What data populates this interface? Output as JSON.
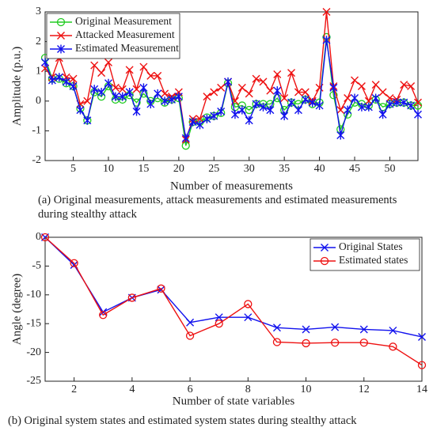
{
  "chart_data": [
    {
      "type": "line",
      "x_label": "Number of measurements",
      "y_label": "Amplitude (p.u.)",
      "caption": "(a) Original measurements, attack measurements and estimated measurements during stealthy attack",
      "x": [
        1,
        2,
        3,
        4,
        5,
        6,
        7,
        8,
        9,
        10,
        11,
        12,
        13,
        14,
        15,
        16,
        17,
        18,
        19,
        20,
        21,
        22,
        23,
        24,
        25,
        26,
        27,
        28,
        29,
        30,
        31,
        32,
        33,
        34,
        35,
        36,
        37,
        38,
        39,
        40,
        41,
        42,
        43,
        44,
        45,
        46,
        47,
        48,
        49,
        50,
        51,
        52,
        53,
        54
      ],
      "xlim": [
        1,
        54
      ],
      "xticks": [
        5,
        10,
        15,
        20,
        25,
        30,
        35,
        40,
        45,
        50
      ],
      "ylim": [
        -2,
        3
      ],
      "yticks": [
        -2,
        -1,
        0,
        1,
        2,
        3
      ],
      "legend": "top-left",
      "series": [
        {
          "name": "Original Measurement",
          "color": "#22cc22",
          "marker": "circle",
          "values": [
            1.45,
            0.75,
            0.75,
            0.6,
            0.5,
            -0.25,
            -0.65,
            0.3,
            0.15,
            0.5,
            0.05,
            0.05,
            0.2,
            -0.05,
            0.25,
            0.0,
            0.1,
            -0.05,
            0.05,
            0.1,
            -1.5,
            -0.7,
            -0.7,
            -0.55,
            -0.5,
            -0.4,
            0.6,
            -0.2,
            -0.15,
            -0.3,
            -0.1,
            -0.1,
            -0.1,
            0.1,
            -0.3,
            -0.05,
            -0.1,
            0.05,
            -0.1,
            -0.05,
            2.15,
            0.2,
            -0.95,
            -0.45,
            -0.05,
            -0.1,
            -0.15,
            0.05,
            -0.2,
            -0.1,
            -0.05,
            -0.05,
            -0.15,
            -0.15
          ]
        },
        {
          "name": "Attacked Measurement",
          "color": "#ee1111",
          "marker": "x",
          "values": [
            1.1,
            0.8,
            1.45,
            0.8,
            0.75,
            -0.1,
            0.0,
            1.2,
            0.95,
            1.3,
            0.45,
            0.4,
            1.05,
            0.4,
            1.15,
            0.85,
            0.85,
            0.25,
            0.15,
            0.3,
            -1.3,
            -0.6,
            -0.6,
            0.15,
            0.3,
            0.45,
            0.65,
            0.0,
            0.45,
            0.25,
            0.75,
            0.65,
            0.35,
            0.9,
            0.1,
            0.95,
            0.3,
            0.3,
            0.0,
            0.45,
            3.0,
            0.5,
            -0.3,
            0.1,
            0.7,
            0.5,
            0.0,
            0.55,
            0.3,
            0.1,
            0.05,
            0.55,
            0.5,
            -0.05
          ]
        },
        {
          "name": "Estimated Measurement",
          "color": "#1111ee",
          "marker": "asterisk",
          "values": [
            1.3,
            0.7,
            0.8,
            0.65,
            0.5,
            -0.3,
            -0.65,
            0.4,
            0.3,
            0.6,
            0.15,
            0.15,
            0.3,
            -0.35,
            0.45,
            -0.1,
            0.25,
            0.0,
            0.05,
            0.15,
            -1.25,
            -0.7,
            -0.8,
            -0.6,
            -0.5,
            -0.35,
            0.65,
            -0.45,
            -0.3,
            -0.65,
            -0.1,
            -0.2,
            -0.3,
            0.35,
            -0.5,
            -0.05,
            -0.3,
            0.05,
            -0.05,
            -0.15,
            2.05,
            0.45,
            -1.15,
            -0.3,
            0.1,
            -0.2,
            -0.2,
            0.1,
            -0.45,
            -0.1,
            -0.05,
            -0.05,
            -0.15,
            -0.45
          ]
        }
      ]
    },
    {
      "type": "line",
      "x_label": "Number of state variables",
      "y_label": "Angle (degree)",
      "caption": "(b) Original system states and estimated system states during stealthy attack",
      "x": [
        1,
        2,
        3,
        4,
        5,
        6,
        7,
        8,
        9,
        10,
        11,
        12,
        13,
        14
      ],
      "xlim": [
        1,
        14
      ],
      "xticks": [
        2,
        4,
        6,
        8,
        10,
        12,
        14
      ],
      "ylim": [
        -25,
        0
      ],
      "yticks": [
        -25,
        -20,
        -15,
        -10,
        -5,
        0
      ],
      "legend": "top-right",
      "series": [
        {
          "name": "Original States",
          "color": "#1111ee",
          "marker": "x",
          "values": [
            0,
            -4.8,
            -13,
            -10.5,
            -9.1,
            -14.8,
            -13.9,
            -13.9,
            -15.7,
            -16,
            -15.6,
            -16,
            -16.2,
            -17.3
          ]
        },
        {
          "name": "Estimated states",
          "color": "#ee1111",
          "marker": "circle",
          "values": [
            0,
            -4.5,
            -13.5,
            -10.5,
            -8.9,
            -17.1,
            -15,
            -11.6,
            -18.2,
            -18.4,
            -18.3,
            -18.3,
            -19,
            -22.2
          ]
        }
      ]
    }
  ]
}
